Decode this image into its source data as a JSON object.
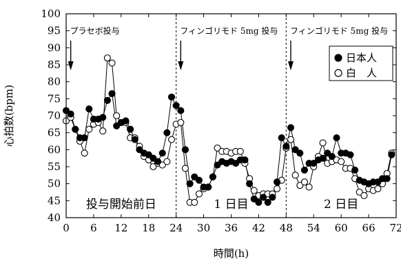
{
  "chart_data": {
    "type": "line",
    "title": "",
    "xlabel": "時間(h)",
    "ylabel": "心拍数(bpm)",
    "xlim": [
      0,
      72
    ],
    "ylim": [
      40,
      100
    ],
    "xticks": [
      0,
      6,
      12,
      18,
      24,
      30,
      36,
      42,
      48,
      54,
      60,
      66,
      72
    ],
    "yticks": [
      40,
      45,
      50,
      55,
      60,
      65,
      70,
      75,
      80,
      85,
      90,
      95,
      100
    ],
    "grid": false,
    "legend_position": "top-right",
    "series": [
      {
        "name": "日本人",
        "marker": "filled-circle",
        "color": "#000000",
        "points": [
          [
            0,
            71.5
          ],
          [
            1,
            70.5
          ],
          [
            2,
            66.0
          ],
          [
            3,
            63.5
          ],
          [
            4,
            63.5
          ],
          [
            5,
            72.0
          ],
          [
            6,
            69.0
          ],
          [
            7,
            69.0
          ],
          [
            8,
            69.5
          ],
          [
            9,
            74.5
          ],
          [
            10,
            76.5
          ],
          [
            11,
            67.0
          ],
          [
            12,
            68.0
          ],
          [
            13,
            68.5
          ],
          [
            14,
            66.0
          ],
          [
            15,
            63.0
          ],
          [
            16,
            60.0
          ],
          [
            17,
            59.0
          ],
          [
            18,
            58.5
          ],
          [
            19,
            57.5
          ],
          [
            20,
            56.5
          ],
          [
            21,
            59.0
          ],
          [
            22,
            65.0
          ],
          [
            23,
            75.5
          ],
          [
            24,
            73.0
          ],
          [
            25,
            71.5
          ],
          [
            26,
            60.0
          ],
          [
            27,
            50.0
          ],
          [
            28,
            52.0
          ],
          [
            29,
            51.0
          ],
          [
            30,
            49.0
          ],
          [
            31,
            49.0
          ],
          [
            32,
            52.0
          ],
          [
            33,
            55.5
          ],
          [
            34,
            56.5
          ],
          [
            35,
            56.0
          ],
          [
            36,
            56.5
          ],
          [
            37,
            56.0
          ],
          [
            38,
            57.0
          ],
          [
            39,
            57.0
          ],
          [
            40,
            50.0
          ],
          [
            41,
            45.5
          ],
          [
            42,
            44.5
          ],
          [
            43,
            46.0
          ],
          [
            44,
            44.5
          ],
          [
            45,
            46.0
          ],
          [
            46,
            50.5
          ],
          [
            47,
            63.5
          ],
          [
            48,
            61.0
          ],
          [
            49,
            66.5
          ],
          [
            50,
            60.0
          ],
          [
            51,
            59.0
          ],
          [
            52,
            54.0
          ],
          [
            53,
            56.0
          ],
          [
            54,
            56.0
          ],
          [
            55,
            57.0
          ],
          [
            56,
            57.5
          ],
          [
            57,
            59.0
          ],
          [
            58,
            58.0
          ],
          [
            59,
            63.5
          ],
          [
            60,
            59.0
          ],
          [
            61,
            59.0
          ],
          [
            62,
            58.5
          ],
          [
            63,
            54.0
          ],
          [
            64,
            51.0
          ],
          [
            65,
            50.5
          ],
          [
            66,
            50.0
          ],
          [
            67,
            50.5
          ],
          [
            68,
            50.5
          ],
          [
            69,
            51.5
          ],
          [
            70,
            51.5
          ],
          [
            71,
            58.5
          ]
        ]
      },
      {
        "name": "白　人",
        "marker": "open-circle",
        "color": "#000000",
        "points": [
          [
            0,
            68.5
          ],
          [
            1,
            69.5
          ],
          [
            2,
            66.0
          ],
          [
            3,
            62.5
          ],
          [
            4,
            59.0
          ],
          [
            5,
            66.0
          ],
          [
            6,
            67.5
          ],
          [
            7,
            68.0
          ],
          [
            8,
            65.5
          ],
          [
            9,
            87.0
          ],
          [
            10,
            85.5
          ],
          [
            11,
            70.0
          ],
          [
            12,
            68.0
          ],
          [
            13,
            68.0
          ],
          [
            14,
            63.5
          ],
          [
            15,
            63.5
          ],
          [
            16,
            61.0
          ],
          [
            17,
            58.0
          ],
          [
            18,
            57.0
          ],
          [
            19,
            55.0
          ],
          [
            20,
            56.0
          ],
          [
            21,
            55.5
          ],
          [
            22,
            56.5
          ],
          [
            23,
            63.0
          ],
          [
            24,
            67.5
          ],
          [
            25,
            68.0
          ],
          [
            26,
            54.5
          ],
          [
            27,
            44.5
          ],
          [
            28,
            44.5
          ],
          [
            29,
            47.0
          ],
          [
            30,
            48.5
          ],
          [
            31,
            49.0
          ],
          [
            32,
            52.0
          ],
          [
            33,
            60.5
          ],
          [
            34,
            59.5
          ],
          [
            35,
            59.5
          ],
          [
            36,
            59.0
          ],
          [
            37,
            59.5
          ],
          [
            38,
            59.5
          ],
          [
            39,
            56.0
          ],
          [
            40,
            51.5
          ],
          [
            41,
            48.0
          ],
          [
            42,
            46.5
          ],
          [
            43,
            47.0
          ],
          [
            44,
            47.0
          ],
          [
            45,
            47.0
          ],
          [
            46,
            48.5
          ],
          [
            47,
            51.0
          ],
          [
            48,
            60.5
          ],
          [
            49,
            63.0
          ],
          [
            50,
            52.5
          ],
          [
            51,
            49.5
          ],
          [
            52,
            50.5
          ],
          [
            53,
            49.0
          ],
          [
            54,
            55.0
          ],
          [
            55,
            58.0
          ],
          [
            56,
            62.0
          ],
          [
            57,
            56.0
          ],
          [
            58,
            56.5
          ],
          [
            59,
            57.0
          ],
          [
            60,
            56.5
          ],
          [
            61,
            54.5
          ],
          [
            62,
            54.5
          ],
          [
            63,
            51.5
          ],
          [
            64,
            47.5
          ],
          [
            65,
            46.5
          ],
          [
            66,
            48.5
          ],
          [
            67,
            48.0
          ],
          [
            68,
            48.5
          ],
          [
            69,
            50.0
          ],
          [
            70,
            53.0
          ],
          [
            71,
            59.0
          ]
        ]
      }
    ],
    "vlines": [
      24,
      48
    ],
    "annotations": [
      {
        "text": "プラセボ投与",
        "arrow_x": 1
      },
      {
        "text": "フィンゴリモド 5mg 投与",
        "arrow_x": 25
      },
      {
        "text": "フィンゴリモド 5mg 投与",
        "arrow_x": 49
      }
    ],
    "phase_labels": [
      {
        "text": "投与開始前日",
        "x_center": 12
      },
      {
        "text": "1 日目",
        "x_center": 36
      },
      {
        "text": "2 日目",
        "x_center": 60
      }
    ]
  }
}
